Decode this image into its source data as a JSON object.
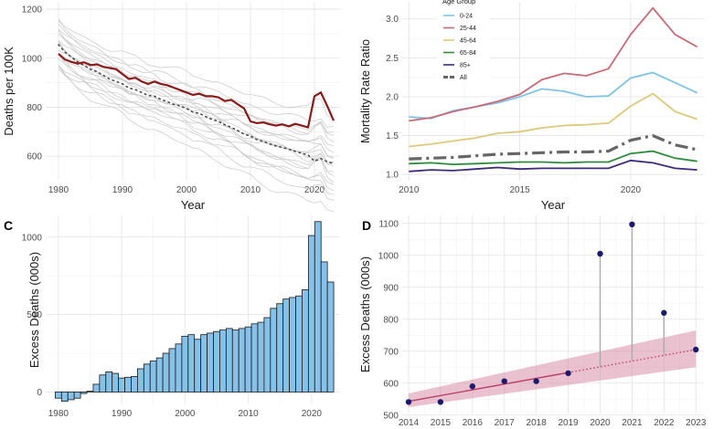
{
  "chart_data": [
    {
      "panel_label": "",
      "type": "line",
      "xlabel": "Year",
      "ylabel": "Deaths per 100K",
      "xlim": [
        1978,
        2024
      ],
      "ylim": [
        500,
        1230
      ],
      "xticks": [
        1980,
        1990,
        2000,
        2010,
        2020
      ],
      "yticks": [
        600,
        800,
        1000,
        1200
      ],
      "grid": true,
      "colors": {
        "highlight": "#8b1a1a",
        "mean": "#4d4d4d",
        "background": "#c8c8c8"
      },
      "series": [
        {
          "role": "highlight",
          "x": [
            1980,
            1981,
            1982,
            1983,
            1984,
            1985,
            1986,
            1987,
            1988,
            1989,
            1990,
            1991,
            1992,
            1993,
            1994,
            1995,
            1996,
            1997,
            1998,
            1999,
            2000,
            2001,
            2002,
            2003,
            2004,
            2005,
            2006,
            2007,
            2008,
            2009,
            2010,
            2011,
            2012,
            2013,
            2014,
            2015,
            2016,
            2017,
            2018,
            2019,
            2020,
            2021,
            2022,
            2023
          ],
          "y": [
            1018,
            995,
            985,
            978,
            983,
            972,
            975,
            965,
            960,
            955,
            935,
            915,
            920,
            905,
            895,
            905,
            895,
            890,
            880,
            870,
            860,
            850,
            855,
            845,
            845,
            840,
            825,
            830,
            812,
            795,
            742,
            735,
            738,
            730,
            725,
            730,
            722,
            732,
            725,
            718,
            845,
            860,
            805,
            745
          ]
        },
        {
          "role": "mean",
          "x": [
            1980,
            1981,
            1982,
            1983,
            1984,
            1985,
            1986,
            1987,
            1988,
            1989,
            1990,
            1991,
            1992,
            1993,
            1994,
            1995,
            1996,
            1997,
            1998,
            1999,
            2000,
            2001,
            2002,
            2003,
            2004,
            2005,
            2006,
            2007,
            2008,
            2009,
            2010,
            2011,
            2012,
            2013,
            2014,
            2015,
            2016,
            2017,
            2018,
            2019,
            2020,
            2021,
            2022,
            2023
          ],
          "y": [
            1055,
            1025,
            1005,
            985,
            970,
            955,
            945,
            930,
            915,
            905,
            895,
            878,
            872,
            860,
            848,
            845,
            832,
            822,
            812,
            805,
            795,
            780,
            775,
            762,
            750,
            742,
            728,
            718,
            705,
            690,
            682,
            668,
            660,
            650,
            642,
            636,
            628,
            620,
            612,
            605,
            580,
            590,
            578,
            570
          ]
        }
      ],
      "background_series_count": 20
    },
    {
      "panel_label": "",
      "type": "line",
      "xlabel": "Year",
      "ylabel": "Mortality Rate Ratio",
      "xlim": [
        2009.7,
        2023.3
      ],
      "ylim": [
        0.92,
        3.22
      ],
      "xticks": [
        2010,
        2015,
        2020
      ],
      "yticks": [
        1.0,
        1.5,
        2.0,
        2.5,
        3.0
      ],
      "grid": true,
      "legend": {
        "title": "Age Group",
        "placement": "top-left"
      },
      "x": [
        2010,
        2011,
        2012,
        2013,
        2014,
        2015,
        2016,
        2017,
        2018,
        2019,
        2020,
        2021,
        2022,
        2023
      ],
      "series": [
        {
          "name": "0-24",
          "color": "#7fc4e4",
          "dash": "solid",
          "width": 1.8,
          "values": [
            1.74,
            1.72,
            1.82,
            1.87,
            1.92,
            2.0,
            2.1,
            2.07,
            2.0,
            2.01,
            2.24,
            2.31,
            2.18,
            2.05
          ]
        },
        {
          "name": "25-44",
          "color": "#c96a78",
          "dash": "solid",
          "width": 1.8,
          "values": [
            1.69,
            1.73,
            1.81,
            1.87,
            1.94,
            2.03,
            2.22,
            2.3,
            2.27,
            2.36,
            2.8,
            3.14,
            2.8,
            2.64
          ]
        },
        {
          "name": "45-64",
          "color": "#dcc97a",
          "dash": "solid",
          "width": 1.8,
          "values": [
            1.36,
            1.39,
            1.43,
            1.47,
            1.53,
            1.55,
            1.6,
            1.63,
            1.64,
            1.66,
            1.88,
            2.04,
            1.81,
            1.71
          ]
        },
        {
          "name": "65-84",
          "color": "#2e8b3d",
          "dash": "solid",
          "width": 1.8,
          "values": [
            1.14,
            1.15,
            1.13,
            1.14,
            1.15,
            1.16,
            1.16,
            1.15,
            1.16,
            1.16,
            1.27,
            1.3,
            1.21,
            1.17
          ]
        },
        {
          "name": "85+",
          "color": "#3d2b7a",
          "dash": "solid",
          "width": 1.8,
          "values": [
            1.04,
            1.06,
            1.05,
            1.07,
            1.09,
            1.07,
            1.08,
            1.08,
            1.08,
            1.08,
            1.18,
            1.15,
            1.08,
            1.06
          ]
        },
        {
          "name": "All",
          "color": "#666666",
          "dash": "longdash",
          "width": 3.2,
          "values": [
            1.2,
            1.21,
            1.22,
            1.24,
            1.26,
            1.27,
            1.28,
            1.29,
            1.29,
            1.3,
            1.44,
            1.5,
            1.38,
            1.32
          ]
        }
      ]
    },
    {
      "panel_label": "C",
      "type": "bar",
      "xlabel": "",
      "ylabel": "Excess Deaths (000s)",
      "xlim": [
        1978,
        2024.5
      ],
      "ylim": [
        -80,
        1140
      ],
      "xticks": [
        1980,
        1990,
        2000,
        2010,
        2020
      ],
      "yticks": [
        0,
        500,
        1000
      ],
      "grid": true,
      "colors": {
        "bar_fill": "#85c1e9",
        "bar_stroke": "#1a1a1a"
      },
      "x": [
        1980,
        1981,
        1982,
        1983,
        1984,
        1985,
        1986,
        1987,
        1988,
        1989,
        1990,
        1991,
        1992,
        1993,
        1994,
        1995,
        1996,
        1997,
        1998,
        1999,
        2000,
        2001,
        2002,
        2003,
        2004,
        2005,
        2006,
        2007,
        2008,
        2009,
        2010,
        2011,
        2012,
        2013,
        2014,
        2015,
        2016,
        2017,
        2018,
        2019,
        2020,
        2021,
        2022,
        2023
      ],
      "values": [
        -40,
        -60,
        -50,
        -40,
        -10,
        5,
        50,
        110,
        130,
        120,
        90,
        95,
        100,
        150,
        180,
        200,
        220,
        250,
        280,
        310,
        360,
        370,
        340,
        370,
        380,
        390,
        400,
        410,
        400,
        410,
        420,
        440,
        450,
        480,
        540,
        570,
        600,
        610,
        620,
        660,
        1010,
        1100,
        840,
        710
      ]
    },
    {
      "panel_label": "D",
      "type": "scatter",
      "xlabel": "",
      "ylabel": "Excess Deaths (000s)",
      "xlim": [
        2013.8,
        2023.25
      ],
      "ylim": [
        505,
        1125
      ],
      "xticks": [
        2014,
        2015,
        2016,
        2017,
        2018,
        2019,
        2020,
        2021,
        2022,
        2023
      ],
      "yticks": [
        500,
        600,
        700,
        800,
        900,
        1000,
        1100
      ],
      "grid": true,
      "colors": {
        "points": "#1c1a6e",
        "trend": "#b83a62",
        "band": "#d98ea6",
        "segments": "#aaaaaa"
      },
      "x": [
        2014,
        2015,
        2016,
        2017,
        2018,
        2019,
        2020,
        2021,
        2022,
        2023
      ],
      "values": [
        541,
        541,
        590,
        606,
        606,
        631,
        1005,
        1097,
        820,
        705
      ],
      "trend": {
        "x_start": 2014,
        "x_end": 2023,
        "y_start": 543,
        "y_end": 705,
        "fit_end": 2019
      },
      "band": {
        "lower_start": 525,
        "lower_end": 650,
        "upper_start": 568,
        "upper_end": 765
      }
    }
  ]
}
